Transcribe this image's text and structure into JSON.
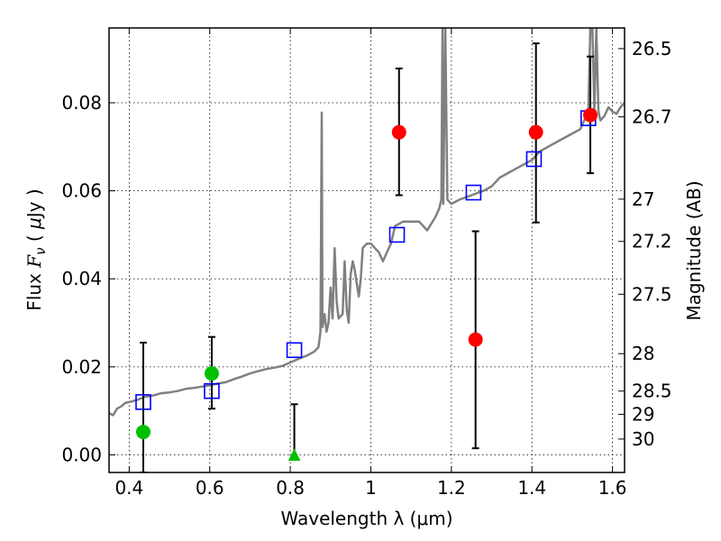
{
  "chart_data": {
    "type": "scatter",
    "xlabel": "Wavelength  λ (μm)",
    "ylabel": "Flux  F_ν  ( μJy )",
    "ylabel_parts": [
      "Flux  ",
      "F",
      "ν",
      "  ( ",
      "μ",
      "Jy )"
    ],
    "y2label": "Magnitude (AB)",
    "xlim": [
      0.35,
      1.63
    ],
    "ylim": [
      -0.004,
      0.097
    ],
    "grid": true,
    "x_ticks": [
      0.4,
      0.6,
      0.8,
      1.0,
      1.2,
      1.4,
      1.6
    ],
    "x_tick_labels": [
      "0.4",
      "0.6",
      "0.8",
      "1",
      "1.2",
      "1.4",
      "1.6"
    ],
    "y_ticks": [
      0.0,
      0.02,
      0.04,
      0.06,
      0.08
    ],
    "y_tick_labels": [
      "0.00",
      "0.02",
      "0.04",
      "0.06",
      "0.08"
    ],
    "mag_ticks": [
      {
        "flux": 0.0923,
        "label": "26.5"
      },
      {
        "flux": 0.0768,
        "label": "26.7"
      },
      {
        "flux": 0.0581,
        "label": "27"
      },
      {
        "flux": 0.0485,
        "label": "27.2"
      },
      {
        "flux": 0.0365,
        "label": "27.5"
      },
      {
        "flux": 0.023,
        "label": "28"
      },
      {
        "flux": 0.0145,
        "label": "28.5"
      },
      {
        "flux": 0.0092,
        "label": "29"
      },
      {
        "flux": 0.0036,
        "label": "30"
      }
    ],
    "series": [
      {
        "kind": "model_spectrum",
        "color": "#808080",
        "points": [
          [
            0.35,
            0.0095
          ],
          [
            0.36,
            0.009
          ],
          [
            0.37,
            0.0105
          ],
          [
            0.38,
            0.011
          ],
          [
            0.39,
            0.0118
          ],
          [
            0.4,
            0.012
          ],
          [
            0.42,
            0.0125
          ],
          [
            0.44,
            0.0132
          ],
          [
            0.46,
            0.0135
          ],
          [
            0.48,
            0.014
          ],
          [
            0.5,
            0.0142
          ],
          [
            0.52,
            0.0145
          ],
          [
            0.54,
            0.015
          ],
          [
            0.56,
            0.0152
          ],
          [
            0.58,
            0.0155
          ],
          [
            0.6,
            0.0158
          ],
          [
            0.62,
            0.0162
          ],
          [
            0.64,
            0.0165
          ],
          [
            0.66,
            0.0172
          ],
          [
            0.68,
            0.0178
          ],
          [
            0.7,
            0.0185
          ],
          [
            0.72,
            0.019
          ],
          [
            0.74,
            0.0195
          ],
          [
            0.76,
            0.0198
          ],
          [
            0.78,
            0.0202
          ],
          [
            0.8,
            0.021
          ],
          [
            0.82,
            0.0218
          ],
          [
            0.84,
            0.0225
          ],
          [
            0.86,
            0.0235
          ],
          [
            0.87,
            0.0245
          ],
          [
            0.875,
            0.028
          ],
          [
            0.878,
            0.0778
          ],
          [
            0.88,
            0.029
          ],
          [
            0.885,
            0.032
          ],
          [
            0.89,
            0.028
          ],
          [
            0.895,
            0.03
          ],
          [
            0.9,
            0.038
          ],
          [
            0.905,
            0.031
          ],
          [
            0.91,
            0.047
          ],
          [
            0.915,
            0.035
          ],
          [
            0.92,
            0.031
          ],
          [
            0.93,
            0.032
          ],
          [
            0.935,
            0.044
          ],
          [
            0.94,
            0.033
          ],
          [
            0.945,
            0.03
          ],
          [
            0.95,
            0.041
          ],
          [
            0.955,
            0.044
          ],
          [
            0.96,
            0.042
          ],
          [
            0.965,
            0.039
          ],
          [
            0.97,
            0.036
          ],
          [
            0.975,
            0.04
          ],
          [
            0.98,
            0.047
          ],
          [
            0.99,
            0.048
          ],
          [
            1.0,
            0.048
          ],
          [
            1.01,
            0.047
          ],
          [
            1.02,
            0.046
          ],
          [
            1.03,
            0.044
          ],
          [
            1.04,
            0.046
          ],
          [
            1.05,
            0.048
          ],
          [
            1.06,
            0.052
          ],
          [
            1.08,
            0.053
          ],
          [
            1.1,
            0.053
          ],
          [
            1.12,
            0.053
          ],
          [
            1.14,
            0.051
          ],
          [
            1.16,
            0.054
          ],
          [
            1.17,
            0.056
          ],
          [
            1.175,
            0.058
          ],
          [
            1.178,
            0.097
          ],
          [
            1.18,
            0.057
          ],
          [
            1.185,
            0.097
          ],
          [
            1.19,
            0.058
          ],
          [
            1.2,
            0.057
          ],
          [
            1.22,
            0.058
          ],
          [
            1.25,
            0.059
          ],
          [
            1.28,
            0.06
          ],
          [
            1.3,
            0.061
          ],
          [
            1.32,
            0.063
          ],
          [
            1.34,
            0.064
          ],
          [
            1.36,
            0.065
          ],
          [
            1.38,
            0.066
          ],
          [
            1.4,
            0.067
          ],
          [
            1.42,
            0.069
          ],
          [
            1.44,
            0.07
          ],
          [
            1.46,
            0.071
          ],
          [
            1.48,
            0.072
          ],
          [
            1.5,
            0.073
          ],
          [
            1.52,
            0.074
          ],
          [
            1.53,
            0.076
          ],
          [
            1.54,
            0.078
          ],
          [
            1.545,
            0.097
          ],
          [
            1.55,
            0.097
          ],
          [
            1.555,
            0.078
          ],
          [
            1.56,
            0.097
          ],
          [
            1.565,
            0.078
          ],
          [
            1.57,
            0.076
          ],
          [
            1.58,
            0.077
          ],
          [
            1.59,
            0.079
          ],
          [
            1.6,
            0.078
          ],
          [
            1.61,
            0.0775
          ],
          [
            1.62,
            0.079
          ],
          [
            1.63,
            0.08
          ]
        ]
      },
      {
        "kind": "model_photometry",
        "marker": "open-square",
        "color": "#0000ff",
        "points": [
          [
            0.435,
            0.012
          ],
          [
            0.605,
            0.0145
          ],
          [
            0.81,
            0.0238
          ],
          [
            1.065,
            0.05
          ],
          [
            1.255,
            0.0596
          ],
          [
            1.405,
            0.0672
          ],
          [
            1.54,
            0.0765
          ]
        ]
      },
      {
        "kind": "detections",
        "marker": "circle",
        "color": "#ff0000",
        "points": [
          {
            "x": 1.07,
            "y": 0.0733,
            "err_low": 0.059,
            "err_high": 0.0878
          },
          {
            "x": 1.26,
            "y": 0.0262,
            "err_low": 0.0015,
            "err_high": 0.0508
          },
          {
            "x": 1.41,
            "y": 0.0733,
            "err_low": 0.0528,
            "err_high": 0.0935
          },
          {
            "x": 1.545,
            "y": 0.0772,
            "err_low": 0.064,
            "err_high": 0.0905
          }
        ]
      },
      {
        "kind": "optical",
        "marker": "circle",
        "color": "#00c000",
        "points": [
          {
            "x": 0.435,
            "y": 0.0052,
            "err_low": -0.004,
            "err_high": 0.0255
          },
          {
            "x": 0.605,
            "y": 0.0185,
            "err_low": 0.0105,
            "err_high": 0.0268
          }
        ]
      },
      {
        "kind": "upper_limit",
        "marker": "triangle",
        "color": "#00c000",
        "points": [
          {
            "x": 0.81,
            "y": -0.0002,
            "err_low": -0.0002,
            "err_high": 0.0115
          }
        ]
      }
    ]
  }
}
